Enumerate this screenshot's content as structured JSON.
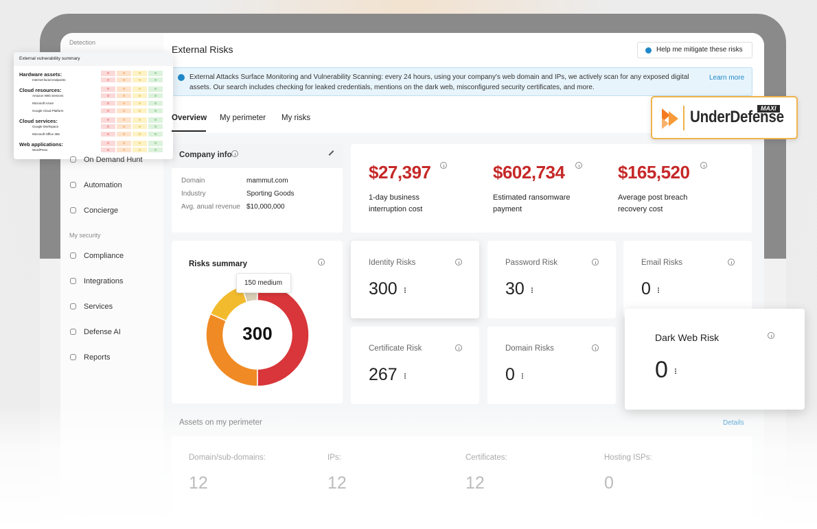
{
  "sidebar": {
    "section_top": "Detection",
    "items": [
      "On Demand Hunt",
      "Automation",
      "Concierge"
    ],
    "section": "My security",
    "security_items": [
      "Compliance",
      "Integrations",
      "Services",
      "Defense AI",
      "Reports"
    ]
  },
  "header": {
    "title": "External Risks",
    "button": "Help me mitigate these risks"
  },
  "banner": {
    "text": "External Attacks Surface Monitoring and Vulnerability Scanning: every 24 hours, using your company's web domain and IPs, we actively scan for any exposed digital assets. Our search includes checking for leaked credentials, mentions on the dark web, misconfigured security certificates, and more.",
    "link": "Learn more"
  },
  "tabs": [
    "Overview",
    "My perimeter",
    "My risks"
  ],
  "company_info": {
    "title": "Company info",
    "rows": [
      [
        "Domain",
        "mammut.com"
      ],
      [
        "Industry",
        "Sporting Goods"
      ],
      [
        "Avg. anual revenue",
        "$10,000,000"
      ]
    ]
  },
  "costs": [
    {
      "value": "$27,397",
      "label": "1-day business interruption cost"
    },
    {
      "value": "$602,734",
      "label": "Estimated ransomware payment"
    },
    {
      "value": "$165,520",
      "label": "Average post breach recovery cost"
    }
  ],
  "risks_summary": {
    "title": "Risks summary",
    "total": "300",
    "tooltip": "150 medium",
    "segments": [
      {
        "color": "#d8363a",
        "value": 150
      },
      {
        "color": "#f08a24",
        "value": 95
      },
      {
        "color": "#f2bb2e",
        "value": 40
      },
      {
        "color": "#d9cfb6",
        "value": 15
      }
    ]
  },
  "risk_cards": [
    {
      "title": "Identity Risks",
      "value": "300"
    },
    {
      "title": "Password Risk",
      "value": "30"
    },
    {
      "title": "Email Risks",
      "value": "0"
    },
    {
      "title": "Certificate Risk",
      "value": "267"
    },
    {
      "title": "Domain Risks",
      "value": "0"
    },
    {
      "title": "Dark Web Risk",
      "value": "0"
    }
  ],
  "assets": {
    "title": "Assets on my perimeter",
    "link": "Details",
    "items": [
      {
        "label": "Domain/sub-domains:",
        "value": "12"
      },
      {
        "label": "IPs:",
        "value": "12"
      },
      {
        "label": "Certificates:",
        "value": "12"
      },
      {
        "label": "Hosting ISPs:",
        "value": "0"
      }
    ]
  },
  "vulnerability_summary": {
    "title": "External vulnerability summary",
    "groups": [
      {
        "name": "Hardware assets:",
        "counts": [
          0,
          0,
          0,
          0
        ],
        "items": [
          {
            "name": "Internet-faced endpoints",
            "counts": [
              0,
              0,
              0,
              0
            ]
          }
        ]
      },
      {
        "name": "Cloud resources:",
        "counts": [
          0,
          0,
          0,
          0
        ],
        "items": [
          {
            "name": "Amazon Web Services",
            "counts": [
              0,
              0,
              0,
              0
            ]
          },
          {
            "name": "Microsoft Azure",
            "counts": [
              0,
              0,
              0,
              0
            ]
          },
          {
            "name": "Google Cloud Platform",
            "counts": [
              0,
              0,
              0,
              0
            ]
          }
        ]
      },
      {
        "name": "Cloud services:",
        "counts": [
          0,
          0,
          0,
          0
        ],
        "items": [
          {
            "name": "Google Workspace",
            "counts": [
              0,
              0,
              0,
              0
            ]
          },
          {
            "name": "Microsoft Office 365",
            "counts": [
              0,
              0,
              0,
              0
            ]
          }
        ]
      },
      {
        "name": "Web applications:",
        "counts": [
          0,
          0,
          0,
          0
        ],
        "items": [
          {
            "name": "WordPress",
            "counts": [
              0,
              0,
              0,
              0
            ]
          }
        ]
      }
    ]
  },
  "brand": {
    "name": "UnderDefense",
    "badge": "MAXI"
  }
}
